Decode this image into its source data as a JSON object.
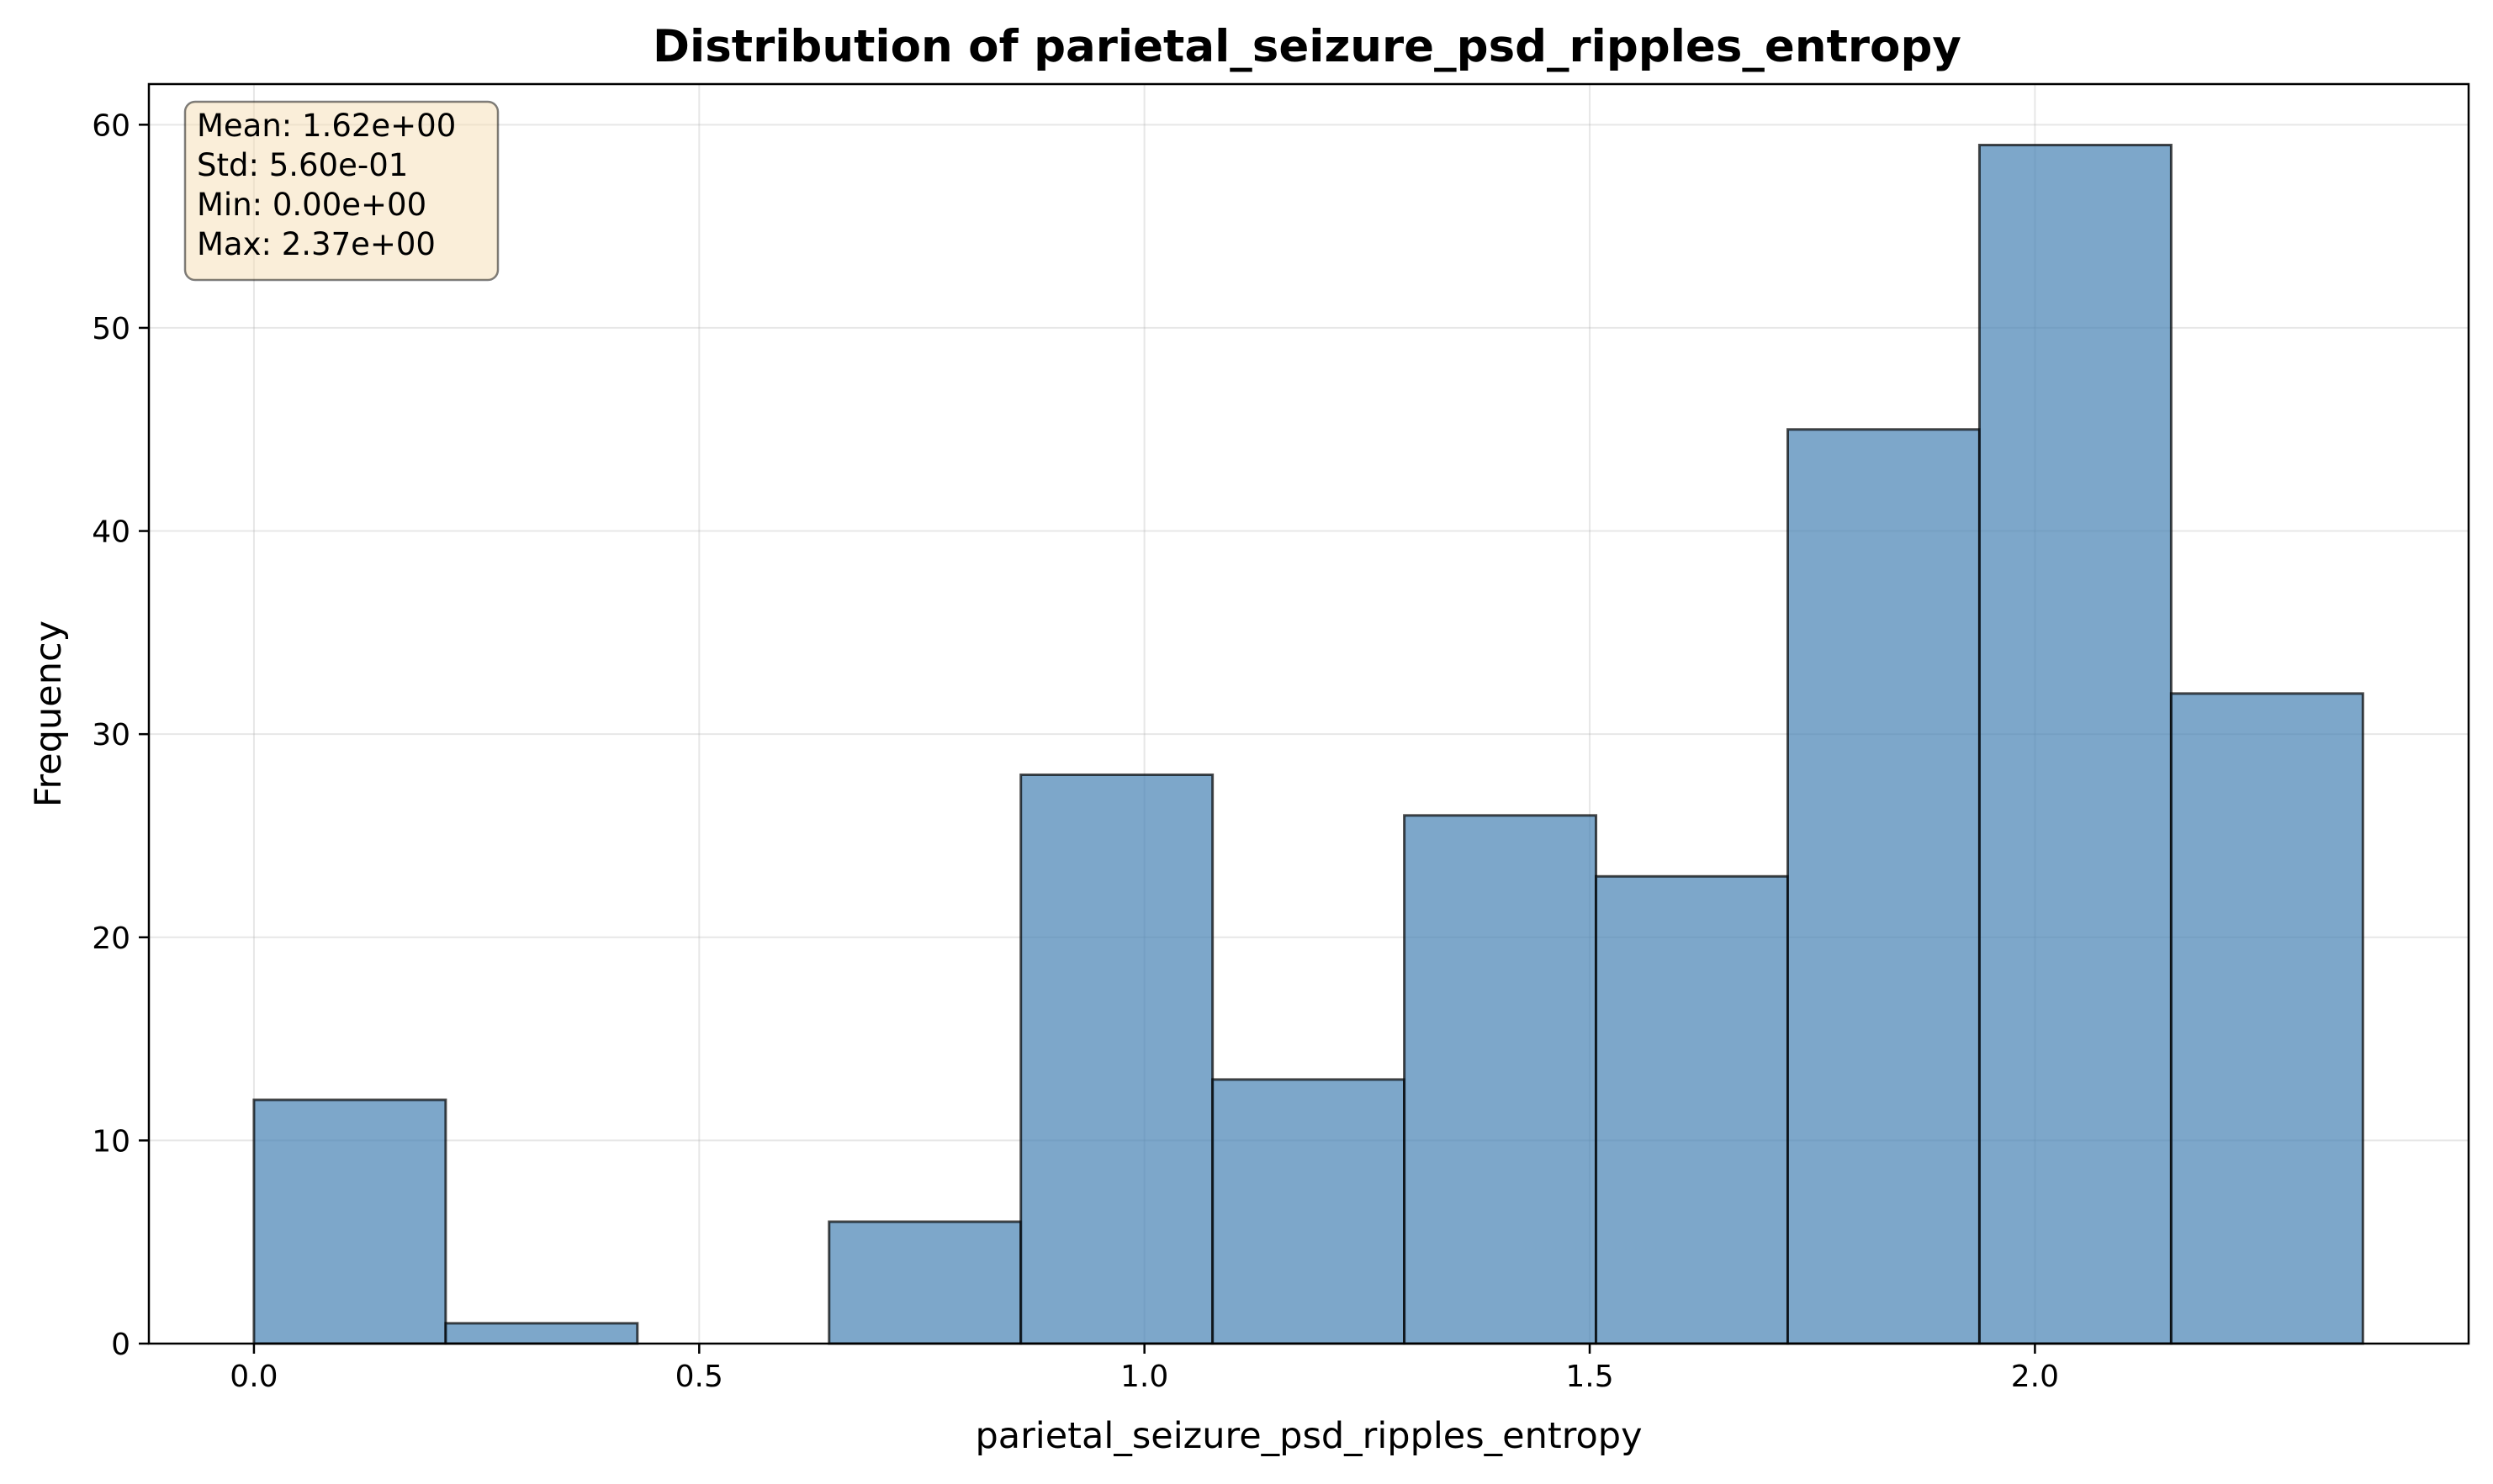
{
  "chart_data": {
    "type": "bar",
    "title": "Distribution of parietal_seizure_psd_ripples_entropy",
    "xlabel": "parietal_seizure_psd_ripples_entropy",
    "ylabel": "Frequency",
    "xlim": [
      -0.118,
      2.487
    ],
    "ylim": [
      0,
      62
    ],
    "x_ticks": [
      {
        "value": 0.0,
        "label": "0.0"
      },
      {
        "value": 0.5,
        "label": "0.5"
      },
      {
        "value": 1.0,
        "label": "1.0"
      },
      {
        "value": 1.5,
        "label": "1.5"
      },
      {
        "value": 2.0,
        "label": "2.0"
      }
    ],
    "y_ticks": [
      {
        "value": 0,
        "label": "0"
      },
      {
        "value": 10,
        "label": "10"
      },
      {
        "value": 20,
        "label": "20"
      },
      {
        "value": 30,
        "label": "30"
      },
      {
        "value": 40,
        "label": "40"
      },
      {
        "value": 50,
        "label": "50"
      },
      {
        "value": 60,
        "label": "60"
      }
    ],
    "bin_edges": [
      0.0,
      0.2153,
      0.4306,
      0.6459,
      0.8612,
      1.0765,
      1.2918,
      1.5071,
      1.7224,
      1.9377,
      2.153,
      2.3683
    ],
    "counts": [
      12,
      1,
      0,
      6,
      28,
      13,
      26,
      23,
      45,
      59,
      32
    ],
    "grid": true,
    "bar_color": "#4682b4",
    "bar_edge_color": "#000000",
    "stats_box": {
      "lines": [
        "Mean: 1.62e+00",
        "Std: 5.60e-01",
        "Min: 0.00e+00",
        "Max: 2.37e+00"
      ],
      "placement": "top-left",
      "background": "#f5deb3",
      "border": "#000000"
    }
  }
}
